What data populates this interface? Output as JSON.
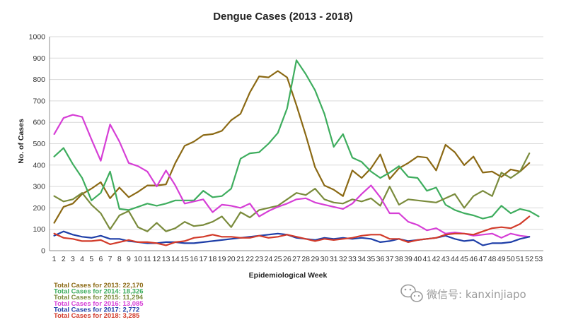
{
  "chart_data": {
    "type": "line",
    "title": "Dengue Cases (2013 - 2018)",
    "xlabel": "Epidemiological  Week",
    "ylabel": "No. of Cases",
    "xlim": [
      1,
      53
    ],
    "ylim": [
      0,
      1000
    ],
    "y_ticks": [
      0,
      100,
      200,
      300,
      400,
      500,
      600,
      700,
      800,
      900,
      1000
    ],
    "x_ticks": [
      1,
      2,
      3,
      4,
      5,
      6,
      7,
      8,
      9,
      10,
      11,
      12,
      13,
      14,
      15,
      16,
      17,
      18,
      19,
      20,
      21,
      22,
      23,
      24,
      25,
      26,
      27,
      28,
      29,
      30,
      31,
      32,
      33,
      34,
      35,
      36,
      37,
      38,
      39,
      40,
      41,
      42,
      43,
      44,
      45,
      46,
      47,
      48,
      49,
      50,
      51,
      52,
      53
    ],
    "grid": "horizontal",
    "legend_position": "bottom-left",
    "series": [
      {
        "name": "Total Cases for 2013: 22,170",
        "color": "#8B6914",
        "values": [
          130,
          205,
          220,
          265,
          290,
          320,
          245,
          295,
          250,
          275,
          305,
          305,
          310,
          410,
          490,
          510,
          540,
          545,
          560,
          610,
          640,
          740,
          815,
          810,
          840,
          810,
          680,
          540,
          390,
          305,
          285,
          255,
          375,
          340,
          385,
          450,
          335,
          385,
          410,
          440,
          435,
          375,
          495,
          460,
          400,
          440,
          365,
          370,
          345,
          380,
          370,
          410
        ]
      },
      {
        "name": "Total Cases for 2014: 18,326",
        "color": "#3EAD5E",
        "values": [
          440,
          480,
          405,
          340,
          235,
          270,
          370,
          195,
          190,
          205,
          220,
          210,
          220,
          235,
          235,
          235,
          280,
          250,
          255,
          290,
          430,
          455,
          460,
          500,
          550,
          665,
          890,
          825,
          750,
          640,
          485,
          545,
          435,
          415,
          370,
          340,
          365,
          395,
          345,
          340,
          280,
          295,
          215,
          190,
          175,
          165,
          150,
          160,
          210,
          175,
          195,
          185,
          160
        ]
      },
      {
        "name": "Total Cases for 2015: 11,294",
        "color": "#7A8B3C",
        "values": [
          255,
          230,
          240,
          270,
          215,
          175,
          100,
          165,
          185,
          110,
          90,
          130,
          90,
          105,
          135,
          115,
          120,
          135,
          160,
          110,
          180,
          155,
          190,
          200,
          210,
          240,
          270,
          260,
          290,
          240,
          225,
          220,
          240,
          230,
          245,
          210,
          300,
          215,
          240,
          235,
          230,
          225,
          245,
          265,
          200,
          255,
          280,
          255,
          365,
          340,
          370,
          455
        ]
      },
      {
        "name": "Total Cases for 2016: 13,085",
        "color": "#D63FD6",
        "values": [
          545,
          620,
          635,
          625,
          520,
          420,
          590,
          510,
          410,
          395,
          370,
          300,
          375,
          305,
          220,
          230,
          240,
          180,
          215,
          210,
          200,
          220,
          160,
          185,
          205,
          220,
          240,
          245,
          225,
          215,
          205,
          195,
          220,
          265,
          305,
          250,
          175,
          175,
          135,
          120,
          95,
          105,
          80,
          85,
          80,
          70,
          75,
          80,
          60,
          80,
          70,
          65
        ]
      },
      {
        "name": "Total Cases for 2017: 2,772",
        "color": "#1F3FA8",
        "values": [
          70,
          90,
          75,
          65,
          60,
          70,
          55,
          55,
          45,
          40,
          35,
          35,
          40,
          40,
          35,
          35,
          40,
          45,
          50,
          55,
          60,
          65,
          70,
          75,
          80,
          75,
          60,
          55,
          50,
          60,
          55,
          60,
          55,
          60,
          55,
          40,
          45,
          55,
          45,
          50,
          55,
          60,
          70,
          55,
          45,
          50,
          25,
          35,
          35,
          40,
          55,
          65
        ]
      },
      {
        "name": "Total Cases for 2018: 3,285",
        "color": "#D23B2A",
        "values": [
          80,
          60,
          55,
          45,
          45,
          50,
          30,
          40,
          50,
          40,
          40,
          35,
          25,
          40,
          45,
          60,
          65,
          75,
          65,
          65,
          60,
          60,
          70,
          60,
          65,
          75,
          65,
          55,
          45,
          55,
          50,
          55,
          60,
          70,
          75,
          75,
          55,
          55,
          40,
          50,
          55,
          60,
          75,
          80,
          80,
          75,
          90,
          105,
          110,
          105,
          125,
          160
        ]
      }
    ]
  },
  "watermark": {
    "icon": "wechat-icon",
    "text": "微信号: kanxinjiapo"
  }
}
